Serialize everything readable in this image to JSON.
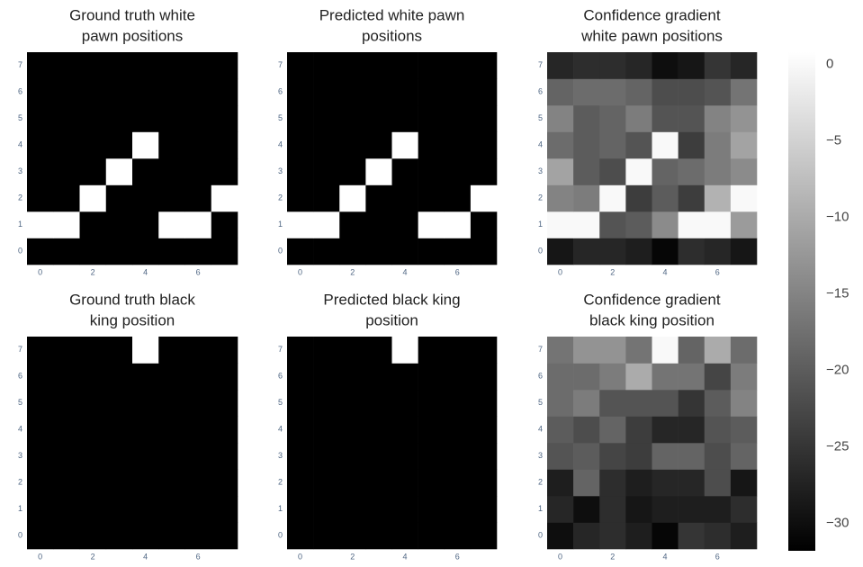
{
  "chart_data": [
    {
      "type": "heatmap",
      "title": [
        "Ground truth white",
        "pawn positions"
      ],
      "colorscale": [
        "#000000",
        "#ffffff"
      ],
      "zlim": [
        0,
        1
      ],
      "xlim": [
        -0.5,
        7.5
      ],
      "ylim": [
        -0.5,
        7.5
      ],
      "xticks": [
        0,
        2,
        4,
        6
      ],
      "yticks": [
        0,
        1,
        2,
        3,
        4,
        5,
        6,
        7
      ],
      "z": [
        [
          0,
          0,
          0,
          0,
          0,
          0,
          0,
          0
        ],
        [
          1,
          1,
          0,
          0,
          0,
          1,
          1,
          0
        ],
        [
          0,
          0,
          1,
          0,
          0,
          0,
          0,
          1
        ],
        [
          0,
          0,
          0,
          1,
          0,
          0,
          0,
          0
        ],
        [
          0,
          0,
          0,
          0,
          1,
          0,
          0,
          0
        ],
        [
          0,
          0,
          0,
          0,
          0,
          0,
          0,
          0
        ],
        [
          0,
          0,
          0,
          0,
          0,
          0,
          0,
          0
        ],
        [
          0,
          0,
          0,
          0,
          0,
          0,
          0,
          0
        ]
      ]
    },
    {
      "type": "heatmap",
      "title": [
        "Predicted white pawn",
        "positions"
      ],
      "colorscale": [
        "#000000",
        "#ffffff"
      ],
      "zlim": [
        0,
        1
      ],
      "xlim": [
        -0.5,
        7.5
      ],
      "ylim": [
        -0.5,
        7.5
      ],
      "xticks": [
        0,
        2,
        4,
        6
      ],
      "yticks": [
        0,
        1,
        2,
        3,
        4,
        5,
        6,
        7
      ],
      "z": [
        [
          0,
          0,
          0,
          0,
          0,
          0,
          0,
          0
        ],
        [
          1,
          1,
          0,
          0,
          0,
          1,
          1,
          0
        ],
        [
          0,
          0,
          1,
          0,
          0,
          0,
          0,
          1
        ],
        [
          0,
          0,
          0,
          1,
          0,
          0,
          0,
          0
        ],
        [
          0,
          0,
          0,
          0,
          1,
          0,
          0,
          0
        ],
        [
          0,
          0,
          0,
          0,
          0,
          0,
          0,
          0
        ],
        [
          0,
          0,
          0,
          0,
          0,
          0,
          0,
          0
        ],
        [
          0,
          0,
          0,
          0,
          0,
          0,
          0,
          0
        ]
      ]
    },
    {
      "type": "heatmap",
      "title": [
        "Confidence gradient",
        "white pawn positions"
      ],
      "colorscale": [
        "#000000",
        "#ffffff"
      ],
      "zlim": [
        -31.8,
        0.8
      ],
      "xlim": [
        -0.5,
        7.5
      ],
      "ylim": [
        -0.5,
        7.5
      ],
      "xticks": [
        0,
        2,
        4,
        6
      ],
      "yticks": [
        0,
        1,
        2,
        3,
        4,
        5,
        6,
        7
      ],
      "z": [
        [
          -29,
          -27,
          -27,
          -28,
          -31,
          -26,
          -27,
          -29
        ],
        [
          0,
          0,
          -21,
          -20,
          -14,
          0,
          0,
          -12
        ],
        [
          -15,
          -16,
          0,
          -24,
          -20,
          -24,
          -9,
          0
        ],
        [
          -11,
          -20,
          -22,
          0,
          -19,
          -18,
          -16,
          -14
        ],
        [
          -18,
          -20,
          -19,
          -21,
          0,
          -24,
          -16,
          -11
        ],
        [
          -15,
          -20,
          -19,
          -16,
          -21,
          -21,
          -15,
          -13
        ],
        [
          -19,
          -18,
          -18,
          -19,
          -22,
          -22,
          -21,
          -17
        ],
        [
          -27,
          -26,
          -26,
          -27,
          -30,
          -29,
          -25,
          -27
        ]
      ]
    },
    {
      "type": "heatmap",
      "title": [
        "Ground truth black",
        "king position"
      ],
      "colorscale": [
        "#000000",
        "#ffffff"
      ],
      "zlim": [
        0,
        1
      ],
      "xlim": [
        -0.5,
        7.5
      ],
      "ylim": [
        -0.5,
        7.5
      ],
      "xticks": [
        0,
        2,
        4,
        6
      ],
      "yticks": [
        0,
        1,
        2,
        3,
        4,
        5,
        6,
        7
      ],
      "z": [
        [
          0,
          0,
          0,
          0,
          0,
          0,
          0,
          0
        ],
        [
          0,
          0,
          0,
          0,
          0,
          0,
          0,
          0
        ],
        [
          0,
          0,
          0,
          0,
          0,
          0,
          0,
          0
        ],
        [
          0,
          0,
          0,
          0,
          0,
          0,
          0,
          0
        ],
        [
          0,
          0,
          0,
          0,
          0,
          0,
          0,
          0
        ],
        [
          0,
          0,
          0,
          0,
          0,
          0,
          0,
          0
        ],
        [
          0,
          0,
          0,
          0,
          0,
          0,
          0,
          0
        ],
        [
          0,
          0,
          0,
          0,
          1,
          0,
          0,
          0
        ]
      ]
    },
    {
      "type": "heatmap",
      "title": [
        "Predicted black king",
        "position"
      ],
      "colorscale": [
        "#000000",
        "#ffffff"
      ],
      "zlim": [
        0,
        1
      ],
      "xlim": [
        -0.5,
        7.5
      ],
      "ylim": [
        -0.5,
        7.5
      ],
      "xticks": [
        0,
        2,
        4,
        6
      ],
      "yticks": [
        0,
        1,
        2,
        3,
        4,
        5,
        6,
        7
      ],
      "z": [
        [
          0,
          0,
          0,
          0,
          0,
          0,
          0,
          0
        ],
        [
          0,
          0,
          0,
          0,
          0,
          0,
          0,
          0
        ],
        [
          0,
          0,
          0,
          0,
          0,
          0,
          0,
          0
        ],
        [
          0,
          0,
          0,
          0,
          0,
          0,
          0,
          0
        ],
        [
          0,
          0,
          0,
          0,
          0,
          0,
          0,
          0
        ],
        [
          0,
          0,
          0,
          0,
          0,
          0,
          0,
          0
        ],
        [
          0,
          0,
          0,
          0,
          0,
          0,
          0,
          0
        ],
        [
          0,
          0,
          0,
          0,
          1,
          0,
          0,
          0
        ]
      ]
    },
    {
      "type": "heatmap",
      "title": [
        "Confidence gradient",
        "black king position"
      ],
      "colorscale": [
        "#000000",
        "#ffffff"
      ],
      "zlim": [
        -31.8,
        0.8
      ],
      "xlim": [
        -0.5,
        7.5
      ],
      "ylim": [
        -0.5,
        7.5
      ],
      "xticks": [
        0,
        2,
        4,
        6
      ],
      "yticks": [
        0,
        1,
        2,
        3,
        4,
        5,
        6,
        7
      ],
      "z": [
        [
          -30,
          -27,
          -26,
          -28,
          -31,
          -25,
          -26,
          -28
        ],
        [
          -27,
          -30,
          -26,
          -29,
          -28,
          -28,
          -28,
          -26
        ],
        [
          -28,
          -19,
          -26,
          -28,
          -27,
          -27,
          -22,
          -29
        ],
        [
          -21,
          -20,
          -23,
          -24,
          -19,
          -19,
          -22,
          -19
        ],
        [
          -20,
          -22,
          -19,
          -24,
          -27,
          -27,
          -21,
          -20
        ],
        [
          -18,
          -16,
          -21,
          -21,
          -21,
          -25,
          -20,
          -15
        ],
        [
          -18,
          -18,
          -16,
          -10,
          -17,
          -17,
          -23,
          -16
        ],
        [
          -17,
          -13,
          -13,
          -17,
          0,
          -19,
          -10,
          -18
        ]
      ]
    },
    {
      "type": "colorbar",
      "colorscale": [
        "#000000",
        "#ffffff"
      ],
      "zlim": [
        -31.8,
        0.8
      ],
      "zticks": [
        0,
        {
          "value": -5,
          "label": "−5"
        },
        {
          "value": -10,
          "label": "−10"
        },
        {
          "value": -15,
          "label": "−15"
        },
        {
          "value": -20,
          "label": "−20"
        },
        {
          "value": -25,
          "label": "−25"
        },
        {
          "value": -30,
          "label": "−30"
        }
      ]
    }
  ]
}
